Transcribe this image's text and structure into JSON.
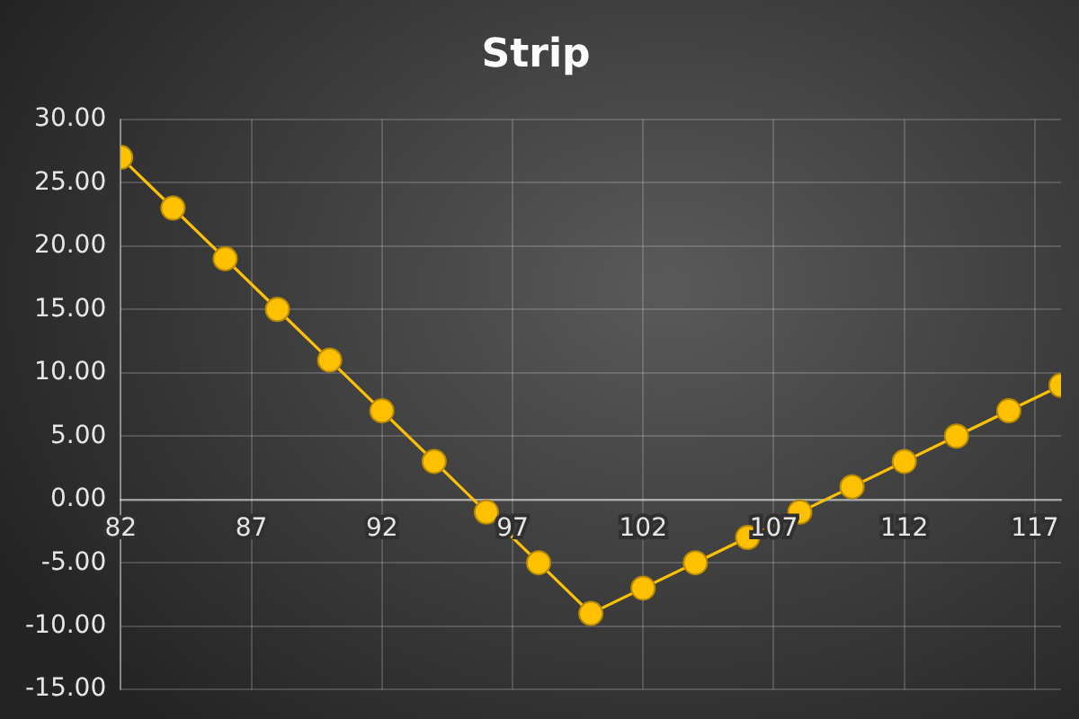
{
  "chart_data": {
    "type": "line",
    "title": "Strip",
    "x": [
      82,
      84,
      86,
      88,
      90,
      92,
      94,
      96,
      98,
      100,
      102,
      104,
      106,
      108,
      110,
      112,
      114,
      116,
      118
    ],
    "values": [
      27,
      23,
      19,
      15,
      11,
      7,
      3,
      -1,
      -5,
      -9,
      -7,
      -5,
      -3,
      -1,
      1,
      3,
      5,
      7,
      9
    ],
    "color": "#ffc000",
    "xlim": [
      82,
      118
    ],
    "xticks": [
      82,
      87,
      92,
      97,
      102,
      107,
      112,
      117
    ],
    "ylim": [
      -15,
      30
    ],
    "yticks": [
      {
        "value": -15,
        "label": "-15.00"
      },
      {
        "value": -10,
        "label": "-10.00"
      },
      {
        "value": -5,
        "label": "-5.00"
      },
      {
        "value": 0,
        "label": "0.00"
      },
      {
        "value": 5,
        "label": "5.00"
      },
      {
        "value": 10,
        "label": "10.00"
      },
      {
        "value": 15,
        "label": "15.00"
      },
      {
        "value": 20,
        "label": "20.00"
      },
      {
        "value": 25,
        "label": "25.00"
      },
      {
        "value": 30,
        "label": "30.00"
      }
    ],
    "grid": true,
    "marker": "circle",
    "line_style": "solid"
  }
}
